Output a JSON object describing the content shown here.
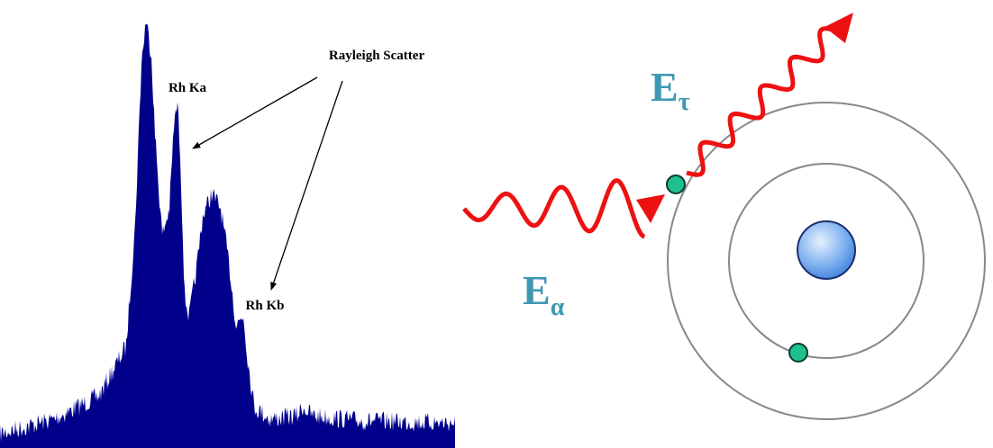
{
  "labels": {
    "rayleigh": "Rayleigh Scatter",
    "rh_ka": "Rh Ka",
    "rh_kb": "Rh Kb"
  },
  "energies": {
    "emitted": {
      "symbol": "E",
      "subscript": "τ"
    },
    "incident": {
      "symbol": "E",
      "subscript": "α"
    }
  }
}
